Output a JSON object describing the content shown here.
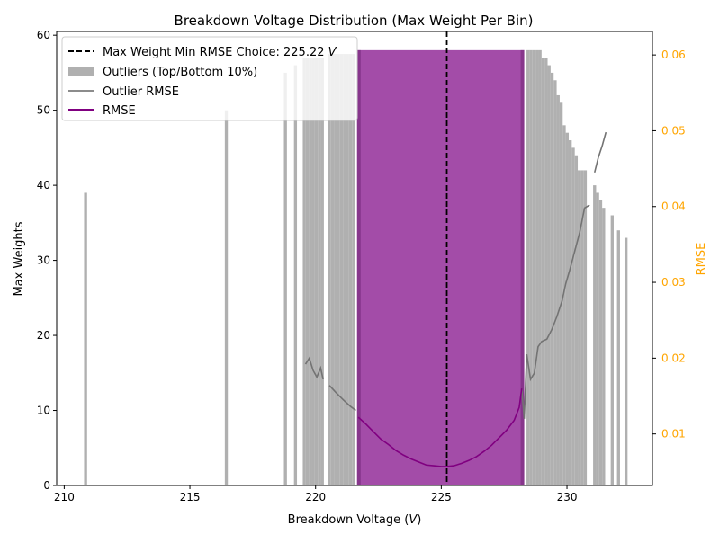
{
  "chart_data": {
    "type": "bar",
    "title": "Breakdown Voltage Distribution (Max Weight Per Bin)",
    "xlabel": "Breakdown Voltage (",
    "xlabel_unit": "V",
    "xlabel_close": ")",
    "ylabel": "Max Weights",
    "ylabel_right": "RMSE",
    "xlim": [
      209.7,
      233.4
    ],
    "ylim": [
      0,
      60.5
    ],
    "ylim_right": [
      0.0032,
      0.0631
    ],
    "xticks": [
      210,
      215,
      220,
      225,
      230
    ],
    "yticks": [
      0,
      10,
      20,
      30,
      40,
      50,
      60
    ],
    "yticks_right": [
      "0.01",
      "0.02",
      "0.03",
      "0.04",
      "0.05",
      "0.06"
    ],
    "yticks_right_values": [
      0.01,
      0.02,
      0.03,
      0.04,
      0.05,
      0.06
    ],
    "legend_position": "top-left",
    "legend": [
      {
        "label": "Max Weight Min RMSE Choice: 225.22 ",
        "unit": "V",
        "kind": "dashed-line",
        "color": "#000000"
      },
      {
        "label": "Outliers (Top/Bottom 10%)",
        "kind": "patch",
        "color": "#b0b0b0"
      },
      {
        "label": "Outlier RMSE",
        "kind": "line",
        "color": "#8c8c8c"
      },
      {
        "label": "RMSE",
        "kind": "line",
        "color": "#800080"
      }
    ],
    "colors": {
      "outlier_bar": "#b0b0b0",
      "inlier_bar": "#a34ca8",
      "outlier_rmse": "#737373",
      "rmse": "#800080",
      "choice_line": "#000000",
      "right_axis": "#ffa500"
    },
    "choice_x": 225.22,
    "bar_width": 0.12,
    "outlier_bars": [
      {
        "x": 210.85,
        "y": 39
      },
      {
        "x": 216.45,
        "y": 50
      },
      {
        "x": 218.8,
        "y": 55
      },
      {
        "x": 219.2,
        "y": 56
      },
      {
        "x": 219.55,
        "y": 57
      },
      {
        "x": 219.67,
        "y": 57
      },
      {
        "x": 219.79,
        "y": 57
      },
      {
        "x": 219.91,
        "y": 57
      },
      {
        "x": 220.03,
        "y": 57
      },
      {
        "x": 220.15,
        "y": 57
      },
      {
        "x": 220.27,
        "y": 57
      },
      {
        "x": 220.55,
        "y": 57.5
      },
      {
        "x": 220.67,
        "y": 57.5
      },
      {
        "x": 220.79,
        "y": 57.5
      },
      {
        "x": 220.91,
        "y": 57.5
      },
      {
        "x": 221.03,
        "y": 57.5
      },
      {
        "x": 221.15,
        "y": 57.5
      },
      {
        "x": 221.27,
        "y": 57.5
      },
      {
        "x": 221.39,
        "y": 57.5
      },
      {
        "x": 221.51,
        "y": 57.5
      },
      {
        "x": 228.45,
        "y": 58
      },
      {
        "x": 228.57,
        "y": 58
      },
      {
        "x": 228.69,
        "y": 58
      },
      {
        "x": 228.81,
        "y": 58
      },
      {
        "x": 228.93,
        "y": 58
      },
      {
        "x": 229.05,
        "y": 57
      },
      {
        "x": 229.17,
        "y": 57
      },
      {
        "x": 229.29,
        "y": 56
      },
      {
        "x": 229.41,
        "y": 55
      },
      {
        "x": 229.53,
        "y": 54
      },
      {
        "x": 229.65,
        "y": 52
      },
      {
        "x": 229.77,
        "y": 51
      },
      {
        "x": 229.89,
        "y": 48
      },
      {
        "x": 230.01,
        "y": 47
      },
      {
        "x": 230.13,
        "y": 46
      },
      {
        "x": 230.25,
        "y": 45
      },
      {
        "x": 230.37,
        "y": 44
      },
      {
        "x": 230.49,
        "y": 42
      },
      {
        "x": 230.61,
        "y": 42
      },
      {
        "x": 230.73,
        "y": 42
      },
      {
        "x": 231.1,
        "y": 40
      },
      {
        "x": 231.22,
        "y": 39
      },
      {
        "x": 231.34,
        "y": 38
      },
      {
        "x": 231.46,
        "y": 37
      },
      {
        "x": 231.8,
        "y": 36
      },
      {
        "x": 232.05,
        "y": 34
      },
      {
        "x": 232.35,
        "y": 33
      }
    ],
    "inlier_band": {
      "x_start": 221.65,
      "x_end": 228.3,
      "y": 58
    },
    "rmse": {
      "x": [
        221.7,
        222.0,
        222.3,
        222.6,
        222.9,
        223.2,
        223.5,
        223.8,
        224.1,
        224.4,
        224.7,
        225.0,
        225.22,
        225.5,
        225.8,
        226.1,
        226.4,
        226.7,
        227.0,
        227.3,
        227.6,
        227.9,
        228.1,
        228.2
      ],
      "y": [
        0.0122,
        0.0113,
        0.0103,
        0.0093,
        0.0086,
        0.0078,
        0.0072,
        0.0067,
        0.0063,
        0.0059,
        0.0058,
        0.0057,
        0.0057,
        0.0058,
        0.0061,
        0.0065,
        0.007,
        0.0077,
        0.0085,
        0.0095,
        0.0105,
        0.0118,
        0.0135,
        0.016
      ]
    },
    "outlier_rmse_segments": [
      {
        "x": [
          219.6,
          219.75,
          219.9,
          220.05,
          220.2,
          220.3
        ],
        "y": [
          0.0192,
          0.02,
          0.0184,
          0.0175,
          0.0187,
          0.0172
        ]
      },
      {
        "x": [
          220.55,
          220.8,
          221.1,
          221.4,
          221.6
        ],
        "y": [
          0.0164,
          0.0155,
          0.0145,
          0.0136,
          0.0131
        ]
      },
      {
        "x": [
          228.2,
          228.3,
          228.4,
          228.55,
          228.7,
          228.85,
          229.0,
          229.2,
          229.4,
          229.6,
          229.8,
          229.95,
          230.1,
          230.3,
          230.5,
          230.7,
          230.9
        ],
        "y": [
          0.016,
          0.012,
          0.0205,
          0.0172,
          0.018,
          0.0215,
          0.0222,
          0.0225,
          0.0238,
          0.0255,
          0.0275,
          0.0298,
          0.0315,
          0.034,
          0.0365,
          0.0398,
          0.0402
        ]
      },
      {
        "x": [
          231.1,
          231.25,
          231.4,
          231.55
        ],
        "y": [
          0.0445,
          0.0465,
          0.048,
          0.0498
        ]
      }
    ]
  }
}
